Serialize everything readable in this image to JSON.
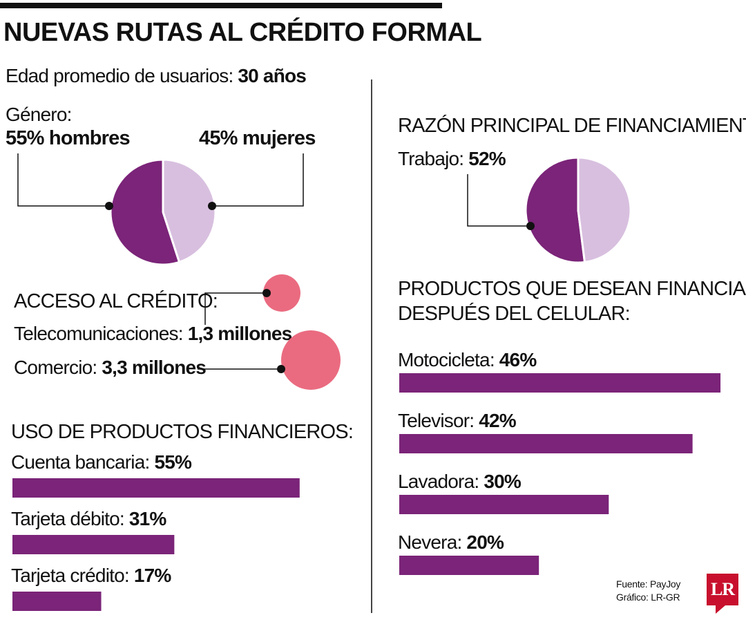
{
  "header": {
    "title": "NUEVAS RUTAS AL CRÉDITO FORMAL"
  },
  "edad": {
    "label": "Edad promedio de usuarios:",
    "value": "30 años"
  },
  "genero": {
    "label": "Género:",
    "hombres": "55% hombres",
    "mujeres": "45% mujeres"
  },
  "acceso": {
    "heading": "ACCESO AL CRÉDITO:",
    "telecom_label": "Telecomunicaciones:",
    "telecom_value": "1,3 millones",
    "comercio_label": "Comercio:",
    "comercio_value": "3,3 millones"
  },
  "uso": {
    "heading": "USO DE PRODUCTOS FINANCIEROS:"
  },
  "razon": {
    "heading": "RAZÓN PRINCIPAL DE FINANCIAMIENTO:",
    "label": "Trabajo:",
    "value": "52%"
  },
  "productos": {
    "heading_line1": "PRODUCTOS QUE DESEAN FINANCIAR",
    "heading_line2": "DESPUÉS DEL CELULAR:"
  },
  "footer": {
    "source": "Fuente: PayJoy",
    "credit": "Gráfico: LR-GR",
    "logo": "LR"
  },
  "colors": {
    "purple": "#7b2479",
    "lavender": "#d8bfdf",
    "pink": "#ea6b80",
    "text": "#111111"
  },
  "chart_data": [
    {
      "type": "pie",
      "categories": [
        "hombres",
        "mujeres"
      ],
      "values": [
        55,
        45
      ]
    },
    {
      "type": "pie",
      "categories": [
        "Trabajo",
        ""
      ],
      "values": [
        52,
        48
      ]
    },
    {
      "type": "bubble",
      "categories": [
        "Telecomunicaciones",
        "Comercio"
      ],
      "values": [
        1.3,
        3.3
      ]
    },
    {
      "type": "bar",
      "orientation": "horizontal",
      "categories": [
        "Cuenta bancaria",
        "Tarjeta débito",
        "Tarjeta crédito"
      ],
      "values": [
        55,
        31,
        17
      ],
      "labels": [
        "55%",
        "31%",
        "17%"
      ]
    },
    {
      "type": "bar",
      "orientation": "horizontal",
      "categories": [
        "Motocicleta",
        "Televisor",
        "Lavadora",
        "Nevera"
      ],
      "values": [
        46,
        42,
        30,
        20
      ],
      "labels": [
        "46%",
        "42%",
        "30%",
        "20%"
      ]
    }
  ]
}
